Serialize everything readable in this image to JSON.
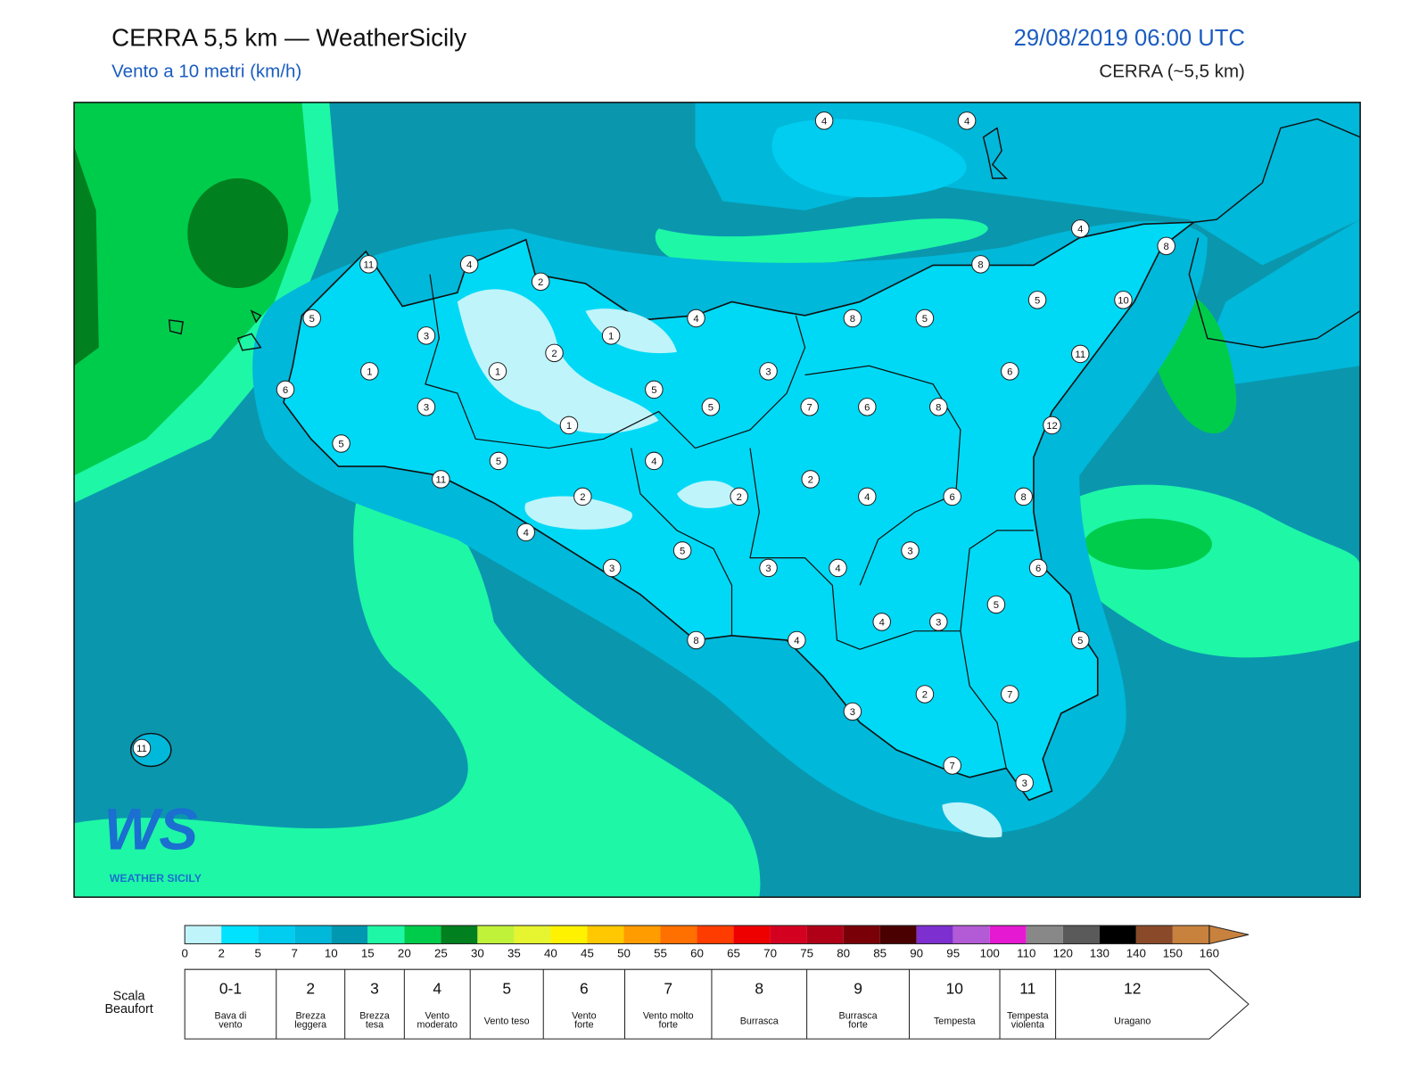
{
  "header": {
    "title": "CERRA 5,5 km — WeatherSicily",
    "subtitle": "Vento a 10 metri (km/h)",
    "date": "29/08/2019 06:00 UTC",
    "source": "CERRA (~5,5 km)"
  },
  "map": {
    "stations": [
      4,
      4,
      4,
      8,
      8,
      5,
      10,
      8,
      5,
      4,
      2,
      4,
      11,
      5,
      3,
      1,
      2,
      1,
      1,
      6,
      3,
      5,
      3,
      11,
      6,
      7,
      6,
      8,
      5,
      1,
      12,
      5,
      5,
      4,
      11,
      2,
      2,
      2,
      4,
      6,
      8,
      4,
      3,
      5,
      3,
      3,
      4,
      6,
      5,
      4,
      3,
      5,
      8,
      4,
      2,
      7,
      3,
      11,
      7,
      3
    ]
  },
  "logo": {
    "mark": "WS",
    "text": "WEATHER SICILY"
  },
  "colorbar": {
    "bins": [
      0,
      2,
      5,
      7,
      10,
      15,
      20,
      25,
      30,
      35,
      40,
      45,
      50,
      55,
      60,
      65,
      70,
      75,
      80,
      85,
      90,
      95,
      100,
      110,
      120,
      130,
      140,
      150,
      160
    ],
    "colors": [
      "#bff4fb",
      "#00e2fd",
      "#00cdf0",
      "#00b8da",
      "#0098b0",
      "#1ef7a6",
      "#00cc4c",
      "#00801f",
      "#c0f23a",
      "#e6f530",
      "#fff200",
      "#ffc800",
      "#ff9c00",
      "#ff7000",
      "#ff3c00",
      "#ee0000",
      "#d40020",
      "#b00018",
      "#7a0008",
      "#4a0000",
      "#7d2fd0",
      "#b35ad6",
      "#e619d2",
      "#888888",
      "#5a5a5a",
      "#000000",
      "#8a4a2a",
      "#c8823e"
    ]
  },
  "beaufort": {
    "title": [
      "Scala",
      "Beaufort"
    ],
    "levels": [
      {
        "force": "0-1",
        "label": [
          "Bava di",
          "vento"
        ]
      },
      {
        "force": 2,
        "label": [
          "Brezza",
          "leggera"
        ]
      },
      {
        "force": 3,
        "label": [
          "Brezza",
          "tesa"
        ]
      },
      {
        "force": 4,
        "label": [
          "Vento",
          "moderato"
        ]
      },
      {
        "force": 5,
        "label": [
          "Vento teso"
        ]
      },
      {
        "force": 6,
        "label": [
          "Vento",
          "forte"
        ]
      },
      {
        "force": 7,
        "label": [
          "Vento molto",
          "forte"
        ]
      },
      {
        "force": 8,
        "label": [
          "Burrasca"
        ]
      },
      {
        "force": 9,
        "label": [
          "Burrasca",
          "forte"
        ]
      },
      {
        "force": 10,
        "label": [
          "Tempesta"
        ]
      },
      {
        "force": 11,
        "label": [
          "Tempesta",
          "violenta"
        ]
      },
      {
        "force": 12,
        "label": [
          "Uragano"
        ]
      }
    ]
  }
}
